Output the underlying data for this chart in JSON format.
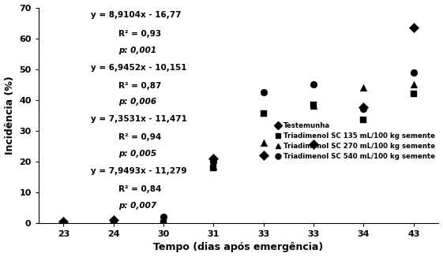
{
  "xlabel": "Tempo (dias após emergência)",
  "ylabel": "Incidência (%)",
  "ylim": [
    0,
    70
  ],
  "yticks": [
    0,
    10,
    20,
    30,
    40,
    50,
    60,
    70
  ],
  "xtick_labels": [
    "23",
    "24",
    "30",
    "31",
    "33",
    "33",
    "34",
    "43"
  ],
  "series": [
    {
      "label": "Testemunha",
      "marker": "D",
      "markersize": 4,
      "x_idx": [
        0,
        1,
        3,
        4,
        5,
        6,
        7
      ],
      "y": [
        0.5,
        1.0,
        21.0,
        22.0,
        25.5,
        37.5,
        63.5
      ]
    },
    {
      "label": "Triadimenol SC 135 mL/100 kg semente",
      "marker": "s",
      "markersize": 4,
      "x_idx": [
        0,
        1,
        2,
        3,
        4,
        5,
        6,
        7
      ],
      "y": [
        0.0,
        0.5,
        0.0,
        18.0,
        35.5,
        38.5,
        33.5,
        42.0
      ]
    },
    {
      "label": "Triadimenol SC 270 mL/100 kg semente",
      "marker": "^",
      "markersize": 4,
      "x_idx": [
        1,
        3,
        4,
        5,
        6,
        7
      ],
      "y": [
        1.0,
        18.5,
        26.0,
        38.0,
        44.0,
        45.0
      ]
    },
    {
      "label": "Triadimenol SC 540 mL/100 kg semente",
      "marker": "o",
      "markersize": 4,
      "x_idx": [
        2,
        3,
        4,
        5,
        6,
        7
      ],
      "y": [
        2.0,
        20.0,
        42.5,
        45.0,
        37.0,
        49.0
      ]
    }
  ],
  "fit_lines": [
    {
      "slope": 8.9104,
      "intercept": -16.77
    },
    {
      "slope": 6.9452,
      "intercept": -10.151
    },
    {
      "slope": 7.3531,
      "intercept": -11.471
    },
    {
      "slope": 7.9493,
      "intercept": -11.279
    }
  ],
  "x_real": [
    23,
    24,
    30,
    31,
    33,
    33,
    34,
    43
  ],
  "annotations": [
    {
      "text": "y = 8,9104x - 16,77",
      "xr": 0.13,
      "yr": 0.985,
      "bold": true,
      "italic": false
    },
    {
      "text": "R² = 0,93",
      "xr": 0.2,
      "yr": 0.895,
      "bold": true,
      "italic": false
    },
    {
      "text": "p: 0,001",
      "xr": 0.2,
      "yr": 0.82,
      "bold": true,
      "italic": true
    },
    {
      "text": "y = 6,9452x - 10,151",
      "xr": 0.13,
      "yr": 0.74,
      "bold": true,
      "italic": false
    },
    {
      "text": "R² = 0,87",
      "xr": 0.2,
      "yr": 0.655,
      "bold": true,
      "italic": false
    },
    {
      "text": "p: 0,006",
      "xr": 0.2,
      "yr": 0.58,
      "bold": true,
      "italic": true
    },
    {
      "text": "y = 7,3531x - 11,471",
      "xr": 0.13,
      "yr": 0.5,
      "bold": true,
      "italic": false
    },
    {
      "text": "R² = 0,94",
      "xr": 0.2,
      "yr": 0.415,
      "bold": true,
      "italic": false
    },
    {
      "text": "p: 0,005",
      "xr": 0.2,
      "yr": 0.34,
      "bold": true,
      "italic": true
    },
    {
      "text": "y = 7,9493x - 11,279",
      "xr": 0.13,
      "yr": 0.26,
      "bold": true,
      "italic": false
    },
    {
      "text": "R² = 0,84",
      "xr": 0.2,
      "yr": 0.175,
      "bold": true,
      "italic": false
    },
    {
      "text": "p: 0,007",
      "xr": 0.2,
      "yr": 0.1,
      "bold": true,
      "italic": true
    }
  ],
  "background_color": "#ffffff",
  "font_family": "Times New Roman"
}
